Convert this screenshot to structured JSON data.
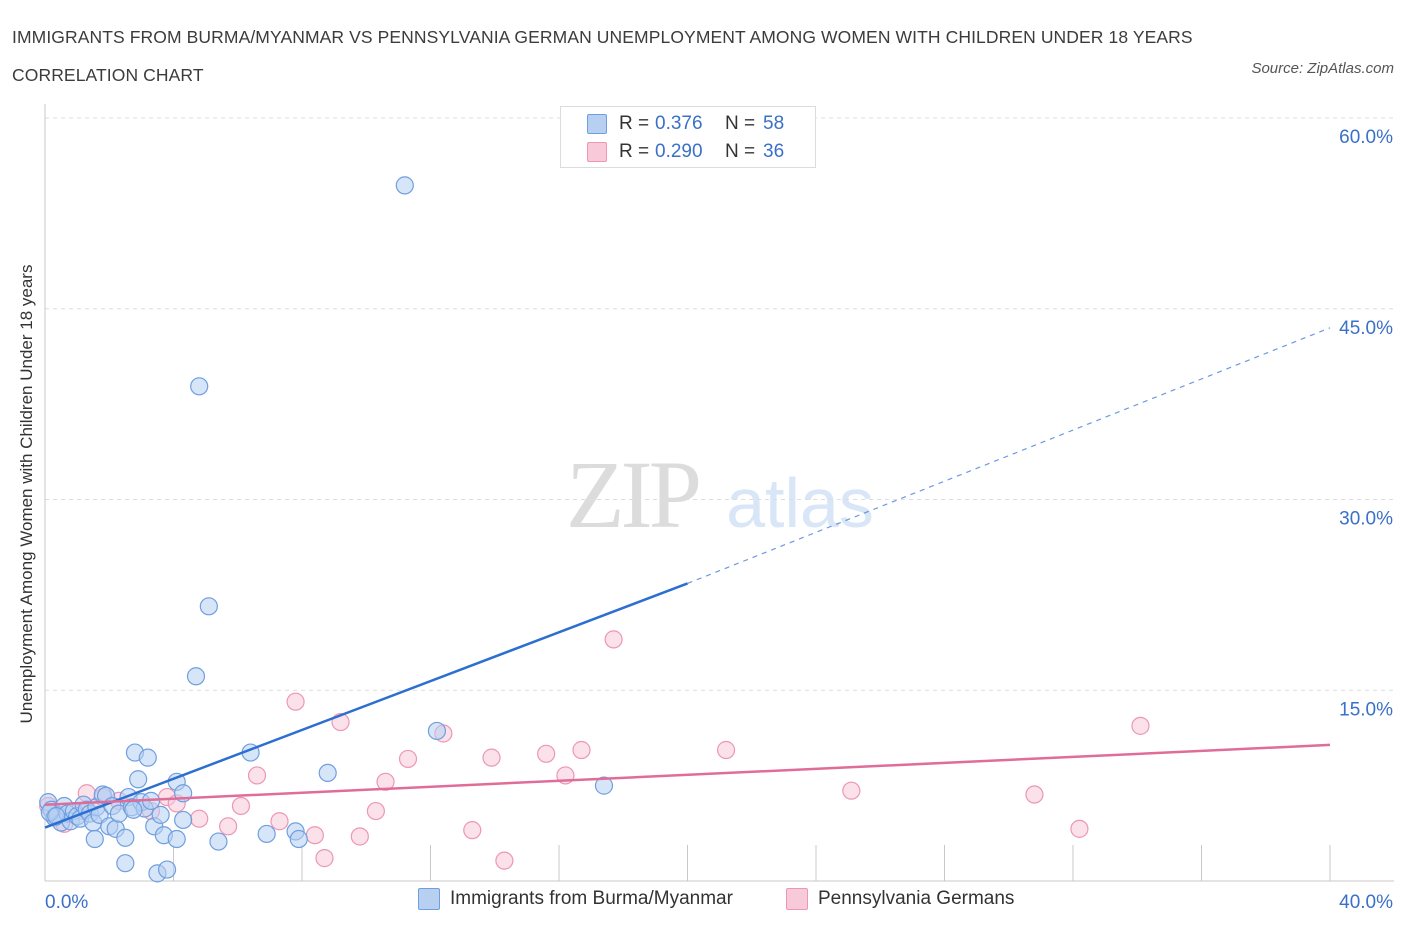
{
  "title": "IMMIGRANTS FROM BURMA/MYANMAR VS PENNSYLVANIA GERMAN UNEMPLOYMENT AMONG WOMEN WITH CHILDREN UNDER 18 YEARS CORRELATION CHART",
  "source": "Source: ZipAtlas.com",
  "watermark": {
    "zip": "ZIP",
    "atlas": "atlas"
  },
  "colors": {
    "blue_fill": "#b7d0f2",
    "blue_stroke": "#6f9fe0",
    "blue_line": "#2c6fd1",
    "pink_fill": "#f8c9d8",
    "pink_stroke": "#ec97b4",
    "pink_line": "#e06c98",
    "axis_label": "#3a70c8"
  },
  "legend": {
    "rows": [
      {
        "r_label": "R =",
        "r_value": "0.376",
        "n_label": "N =",
        "n_value": "58"
      },
      {
        "r_label": "R =",
        "r_value": "0.290",
        "n_label": "N =",
        "n_value": "36"
      }
    ]
  },
  "chart_data": {
    "type": "scatter",
    "title": "IMMIGRANTS FROM BURMA/MYANMAR VS PENNSYLVANIA GERMAN UNEMPLOYMENT AMONG WOMEN WITH CHILDREN UNDER 18 YEARS CORRELATION CHART",
    "xlabel": "",
    "ylabel": "Unemployment Among Women with Children Under 18 years",
    "xlim": [
      0,
      40
    ],
    "ylim": [
      0,
      60
    ],
    "x_tick_labels": [
      "0.0%",
      "40.0%"
    ],
    "y_tick_labels": [
      "15.0%",
      "30.0%",
      "45.0%",
      "60.0%"
    ],
    "y_ticks": [
      15,
      30,
      45,
      60
    ],
    "grid": true,
    "legend_position": "top-center",
    "series": [
      {
        "name": "Immigrants from Burma/Myanmar",
        "R": 0.376,
        "N": 58,
        "trend": {
          "x0": 0,
          "y0": 4.2,
          "x1": 20,
          "y1": 23.4,
          "x_dash_end": 40,
          "y_dash_end": 43.5
        },
        "points": [
          [
            0.1,
            6.2
          ],
          [
            0.2,
            5.6
          ],
          [
            0.3,
            5.0
          ],
          [
            0.4,
            5.2
          ],
          [
            0.5,
            4.6
          ],
          [
            0.6,
            5.9
          ],
          [
            0.7,
            5.3
          ],
          [
            0.8,
            4.7
          ],
          [
            0.9,
            5.5
          ],
          [
            1.0,
            5.1
          ],
          [
            1.1,
            4.9
          ],
          [
            1.2,
            6.0
          ],
          [
            1.3,
            5.6
          ],
          [
            1.4,
            5.3
          ],
          [
            1.5,
            4.6
          ],
          [
            1.6,
            5.8
          ],
          [
            1.7,
            5.2
          ],
          [
            1.8,
            6.8
          ],
          [
            1.9,
            6.7
          ],
          [
            2.0,
            4.3
          ],
          [
            2.1,
            5.9
          ],
          [
            2.2,
            4.1
          ],
          [
            2.3,
            5.3
          ],
          [
            2.5,
            1.4
          ],
          [
            2.5,
            3.4
          ],
          [
            2.6,
            6.6
          ],
          [
            2.7,
            5.8
          ],
          [
            2.8,
            10.1
          ],
          [
            2.9,
            8.0
          ],
          [
            3.0,
            6.2
          ],
          [
            3.1,
            5.7
          ],
          [
            3.2,
            9.7
          ],
          [
            3.3,
            6.3
          ],
          [
            3.4,
            4.3
          ],
          [
            3.5,
            0.6
          ],
          [
            3.6,
            5.2
          ],
          [
            3.7,
            3.6
          ],
          [
            3.8,
            0.9
          ],
          [
            4.1,
            3.3
          ],
          [
            4.1,
            7.8
          ],
          [
            4.3,
            6.9
          ],
          [
            4.3,
            4.8
          ],
          [
            4.7,
            16.1
          ],
          [
            4.8,
            38.9
          ],
          [
            5.1,
            21.6
          ],
          [
            5.4,
            3.1
          ],
          [
            6.4,
            10.1
          ],
          [
            6.9,
            3.7
          ],
          [
            7.8,
            3.9
          ],
          [
            7.9,
            3.3
          ],
          [
            8.8,
            8.5
          ],
          [
            11.2,
            54.7
          ],
          [
            12.2,
            11.8
          ],
          [
            17.4,
            7.5
          ],
          [
            0.15,
            5.4
          ],
          [
            0.35,
            5.1
          ],
          [
            1.55,
            3.3
          ],
          [
            2.75,
            5.6
          ]
        ]
      },
      {
        "name": "Pennsylvania Germans",
        "R": 0.29,
        "N": 36,
        "trend": {
          "x0": 0,
          "y0": 6.0,
          "x1": 40,
          "y1": 10.7
        },
        "points": [
          [
            0.1,
            5.9
          ],
          [
            0.3,
            5.0
          ],
          [
            0.6,
            4.5
          ],
          [
            1.2,
            5.5
          ],
          [
            1.3,
            6.9
          ],
          [
            1.8,
            6.6
          ],
          [
            2.3,
            6.3
          ],
          [
            3.3,
            5.5
          ],
          [
            3.8,
            6.6
          ],
          [
            4.1,
            6.1
          ],
          [
            4.8,
            4.9
          ],
          [
            5.7,
            4.3
          ],
          [
            6.1,
            5.9
          ],
          [
            6.6,
            8.3
          ],
          [
            7.3,
            4.7
          ],
          [
            7.8,
            14.1
          ],
          [
            8.4,
            3.6
          ],
          [
            8.7,
            1.8
          ],
          [
            9.2,
            12.5
          ],
          [
            9.8,
            3.5
          ],
          [
            10.3,
            5.5
          ],
          [
            10.6,
            7.8
          ],
          [
            11.3,
            9.6
          ],
          [
            12.4,
            11.6
          ],
          [
            13.3,
            4.0
          ],
          [
            13.9,
            9.7
          ],
          [
            14.3,
            1.6
          ],
          [
            15.6,
            10.0
          ],
          [
            16.2,
            8.3
          ],
          [
            16.7,
            10.3
          ],
          [
            17.7,
            19.0
          ],
          [
            21.2,
            10.3
          ],
          [
            25.1,
            7.1
          ],
          [
            30.8,
            6.8
          ],
          [
            32.2,
            4.1
          ],
          [
            34.1,
            12.2
          ]
        ]
      }
    ]
  }
}
